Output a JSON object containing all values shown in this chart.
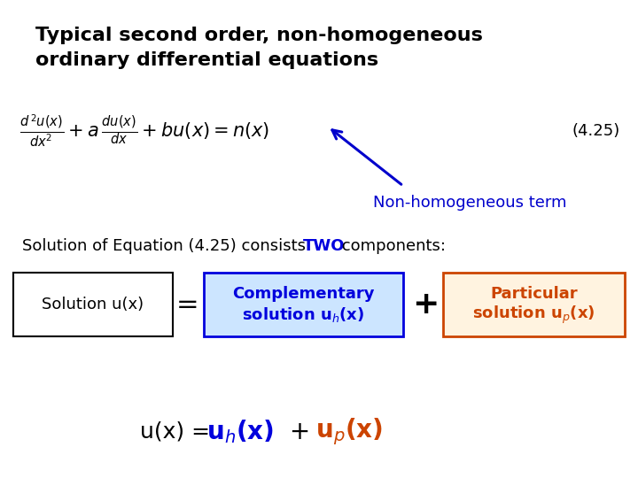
{
  "background_color": "#ffffff",
  "title_line1": "Typical second order, non-homogeneous",
  "title_line2": "ordinary differential equations",
  "title_fontsize": 16,
  "title_color": "#000000",
  "equation_number": "(4.25)",
  "arrow_annotation": "Non-homogeneous term",
  "arrow_color": "#0000cc",
  "solution_line": "Solution of Equation (4.25) consists ",
  "two_text": "TWO",
  "components_text": " components:",
  "sol_label": "Solution u(x)",
  "comp_label_line1": "Complementary",
  "comp_label_line2": "solution uₕ(x)",
  "comp_box_facecolor": "#cce5ff",
  "comp_box_edgecolor": "#0000dd",
  "comp_text_color": "#0000dd",
  "part_label_line1": "Particular",
  "part_label_line2": "solution uₚ(x)",
  "part_box_facecolor": "#fff3e0",
  "part_box_edgecolor": "#cc4400",
  "part_text_color": "#cc4400",
  "sol_box_edgecolor": "#000000",
  "sol_box_facecolor": "#ffffff",
  "sol_text_color": "#000000",
  "blue_color": "#0000dd",
  "orange_color": "#cc4400",
  "black_color": "#000000"
}
